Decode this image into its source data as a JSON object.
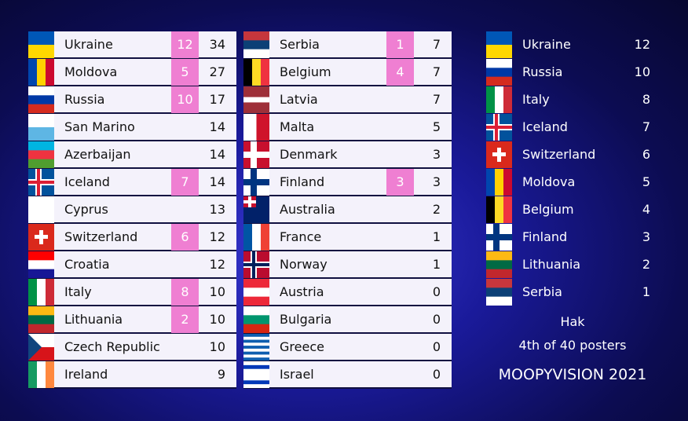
{
  "scoreboard": {
    "left": [
      {
        "country": "Ukraine",
        "points": 12,
        "total": 34
      },
      {
        "country": "Moldova",
        "points": 5,
        "total": 27
      },
      {
        "country": "Russia",
        "points": 10,
        "total": 17
      },
      {
        "country": "San Marino",
        "points": null,
        "total": 14
      },
      {
        "country": "Azerbaijan",
        "points": null,
        "total": 14
      },
      {
        "country": "Iceland",
        "points": 7,
        "total": 14
      },
      {
        "country": "Cyprus",
        "points": null,
        "total": 13
      },
      {
        "country": "Switzerland",
        "points": 6,
        "total": 12
      },
      {
        "country": "Croatia",
        "points": null,
        "total": 12
      },
      {
        "country": "Italy",
        "points": 8,
        "total": 10
      },
      {
        "country": "Lithuania",
        "points": 2,
        "total": 10
      },
      {
        "country": "Czech Republic",
        "points": null,
        "total": 10
      },
      {
        "country": "Ireland",
        "points": null,
        "total": 9
      }
    ],
    "middle": [
      {
        "country": "Serbia",
        "points": 1,
        "total": 7
      },
      {
        "country": "Belgium",
        "points": 4,
        "total": 7
      },
      {
        "country": "Latvia",
        "points": null,
        "total": 7
      },
      {
        "country": "Malta",
        "points": null,
        "total": 5
      },
      {
        "country": "Denmark",
        "points": null,
        "total": 3
      },
      {
        "country": "Finland",
        "points": 3,
        "total": 3
      },
      {
        "country": "Australia",
        "points": null,
        "total": 2
      },
      {
        "country": "France",
        "points": null,
        "total": 1
      },
      {
        "country": "Norway",
        "points": null,
        "total": 1
      },
      {
        "country": "Austria",
        "points": null,
        "total": 0
      },
      {
        "country": "Bulgaria",
        "points": null,
        "total": 0
      },
      {
        "country": "Greece",
        "points": null,
        "total": 0
      },
      {
        "country": "Israel",
        "points": null,
        "total": 0
      }
    ]
  },
  "voter": {
    "votes": [
      {
        "country": "Ukraine",
        "points": 12
      },
      {
        "country": "Russia",
        "points": 10
      },
      {
        "country": "Italy",
        "points": 8
      },
      {
        "country": "Iceland",
        "points": 7
      },
      {
        "country": "Switzerland",
        "points": 6
      },
      {
        "country": "Moldova",
        "points": 5
      },
      {
        "country": "Belgium",
        "points": 4
      },
      {
        "country": "Finland",
        "points": 3
      },
      {
        "country": "Lithuania",
        "points": 2
      },
      {
        "country": "Serbia",
        "points": 1
      }
    ],
    "name": "Hak",
    "rank": "4th of 40 posters",
    "show": "MOOPYVISION 2021"
  }
}
